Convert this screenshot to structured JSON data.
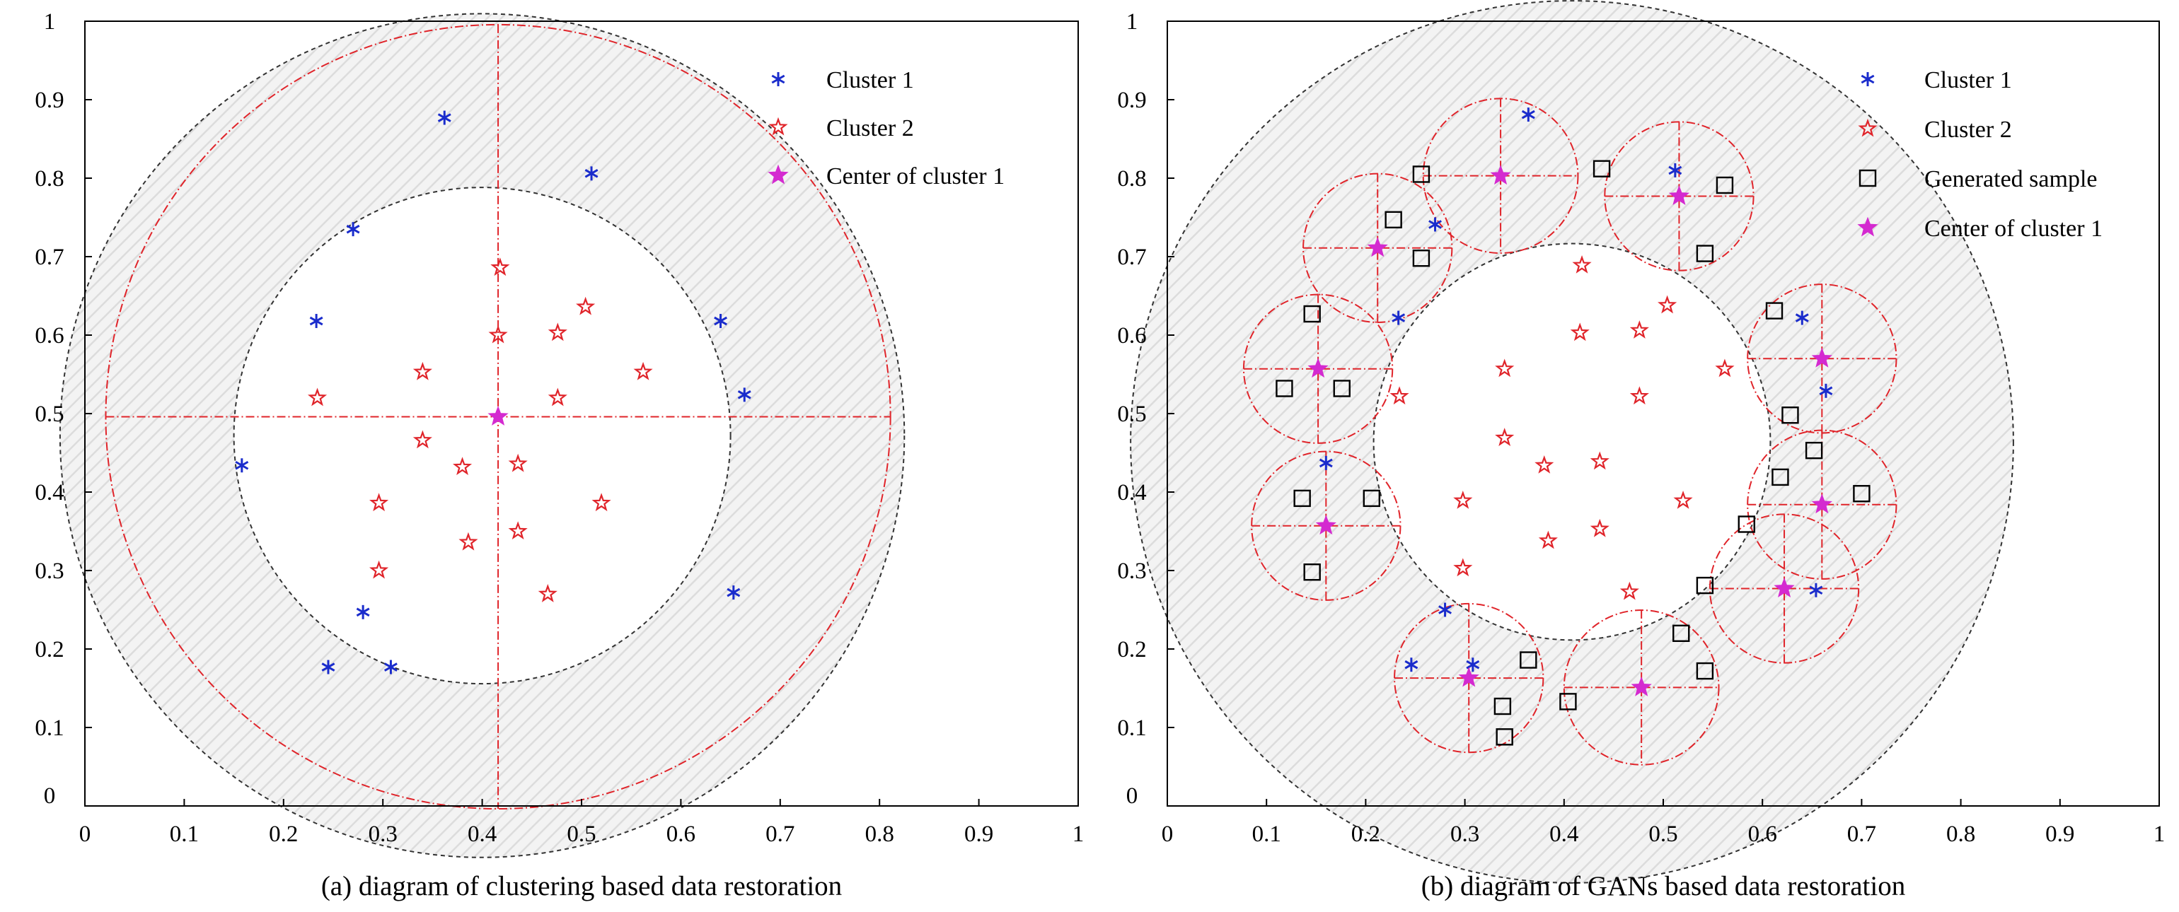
{
  "chart_data": [
    {
      "type": "scatter",
      "caption": "(a) diagram of clustering based data restoration",
      "xlim": [
        0,
        1
      ],
      "ylim": [
        0,
        1
      ],
      "xticks": [
        "0",
        "0.1",
        "0.2",
        "0.3",
        "0.4",
        "0.5",
        "0.6",
        "0.7",
        "0.8",
        "0.9",
        "1"
      ],
      "yticks": [
        "0",
        "0.1",
        "0.2",
        "0.3",
        "0.4",
        "0.5",
        "0.6",
        "0.7",
        "0.8",
        "0.9",
        "1"
      ],
      "legend": [
        "Cluster 1",
        "Cluster 2",
        "Center of cluster 1"
      ],
      "legend_position": "top-right",
      "series": [
        {
          "name": "Cluster 1",
          "marker": "asterisk",
          "color": "#1a2ccc",
          "points": [
            [
              0.362,
              0.877
            ],
            [
              0.51,
              0.806
            ],
            [
              0.27,
              0.735
            ],
            [
              0.233,
              0.618
            ],
            [
              0.64,
              0.618
            ],
            [
              0.664,
              0.524
            ],
            [
              0.158,
              0.434
            ],
            [
              0.28,
              0.247
            ],
            [
              0.653,
              0.272
            ],
            [
              0.245,
              0.177
            ],
            [
              0.308,
              0.177
            ]
          ]
        },
        {
          "name": "Cluster 2",
          "marker": "star-open",
          "color": "#e0242a",
          "points": [
            [
              0.418,
              0.686
            ],
            [
              0.504,
              0.636
            ],
            [
              0.416,
              0.6
            ],
            [
              0.476,
              0.603
            ],
            [
              0.34,
              0.553
            ],
            [
              0.562,
              0.553
            ],
            [
              0.234,
              0.52
            ],
            [
              0.476,
              0.52
            ],
            [
              0.34,
              0.466
            ],
            [
              0.436,
              0.436
            ],
            [
              0.38,
              0.432
            ],
            [
              0.296,
              0.386
            ],
            [
              0.52,
              0.386
            ],
            [
              0.436,
              0.35
            ],
            [
              0.386,
              0.336
            ],
            [
              0.296,
              0.3
            ],
            [
              0.466,
              0.27
            ]
          ]
        },
        {
          "name": "Center of cluster 1",
          "marker": "star-filled",
          "color": "#d42ad0",
          "points": [
            [
              0.416,
              0.496
            ]
          ]
        }
      ],
      "annulus": {
        "center": [
          0.4,
          0.472
        ],
        "inner_radius": 0.25,
        "outer_radius": 0.425
      },
      "dashed_circle": {
        "center": [
          0.416,
          0.496
        ],
        "radius": 0.395
      }
    },
    {
      "type": "scatter",
      "caption": "(b) diagram of GANs based data restoration",
      "xlim": [
        0,
        1
      ],
      "ylim": [
        0,
        1
      ],
      "xticks": [
        "0",
        "0.1",
        "0.2",
        "0.3",
        "0.4",
        "0.5",
        "0.6",
        "0.7",
        "0.8",
        "0.9",
        "1"
      ],
      "yticks": [
        "0",
        "0.1",
        "0.2",
        "0.3",
        "0.4",
        "0.5",
        "0.6",
        "0.7",
        "0.8",
        "0.9",
        "1"
      ],
      "legend": [
        "Cluster 1",
        "Cluster 2",
        "Generated sample",
        "Center of cluster 1"
      ],
      "legend_position": "top-right",
      "series": [
        {
          "name": "Cluster 1",
          "marker": "asterisk",
          "color": "#1a2ccc",
          "points": [
            [
              0.364,
              0.881
            ],
            [
              0.512,
              0.81
            ],
            [
              0.27,
              0.741
            ],
            [
              0.233,
              0.622
            ],
            [
              0.64,
              0.622
            ],
            [
              0.664,
              0.529
            ],
            [
              0.16,
              0.437
            ],
            [
              0.28,
              0.25
            ],
            [
              0.654,
              0.275
            ],
            [
              0.246,
              0.18
            ],
            [
              0.308,
              0.18
            ]
          ]
        },
        {
          "name": "Cluster 2",
          "marker": "star-open",
          "color": "#e0242a",
          "points": [
            [
              0.418,
              0.689
            ],
            [
              0.504,
              0.638
            ],
            [
              0.416,
              0.603
            ],
            [
              0.476,
              0.606
            ],
            [
              0.34,
              0.557
            ],
            [
              0.562,
              0.557
            ],
            [
              0.234,
              0.522
            ],
            [
              0.476,
              0.522
            ],
            [
              0.34,
              0.469
            ],
            [
              0.436,
              0.439
            ],
            [
              0.38,
              0.434
            ],
            [
              0.298,
              0.389
            ],
            [
              0.52,
              0.389
            ],
            [
              0.436,
              0.353
            ],
            [
              0.384,
              0.338
            ],
            [
              0.298,
              0.303
            ],
            [
              0.466,
              0.273
            ]
          ]
        },
        {
          "name": "Generated sample",
          "marker": "square-open",
          "color": "#000000",
          "points": [
            [
              0.256,
              0.805
            ],
            [
              0.438,
              0.812
            ],
            [
              0.562,
              0.791
            ],
            [
              0.228,
              0.747
            ],
            [
              0.256,
              0.698
            ],
            [
              0.542,
              0.704
            ],
            [
              0.146,
              0.627
            ],
            [
              0.612,
              0.631
            ],
            [
              0.118,
              0.532
            ],
            [
              0.176,
              0.532
            ],
            [
              0.628,
              0.498
            ],
            [
              0.652,
              0.453
            ],
            [
              0.618,
              0.419
            ],
            [
              0.7,
              0.398
            ],
            [
              0.136,
              0.392
            ],
            [
              0.206,
              0.392
            ],
            [
              0.584,
              0.359
            ],
            [
              0.146,
              0.298
            ],
            [
              0.542,
              0.281
            ],
            [
              0.518,
              0.22
            ],
            [
              0.364,
              0.186
            ],
            [
              0.542,
              0.172
            ],
            [
              0.404,
              0.133
            ],
            [
              0.338,
              0.127
            ],
            [
              0.34,
              0.088
            ]
          ]
        },
        {
          "name": "Center of cluster 1",
          "marker": "star-filled",
          "color": "#d42ad0",
          "points": [
            [
              0.336,
              0.803
            ],
            [
              0.516,
              0.777
            ],
            [
              0.212,
              0.711
            ],
            [
              0.152,
              0.557
            ],
            [
              0.66,
              0.57
            ],
            [
              0.66,
              0.384
            ],
            [
              0.16,
              0.357
            ],
            [
              0.622,
              0.277
            ],
            [
              0.304,
              0.163
            ],
            [
              0.478,
              0.151
            ]
          ]
        }
      ],
      "annulus": {
        "center": [
          0.408,
          0.464
        ],
        "inner_radius": 0.2,
        "outer_radius": 0.445
      },
      "local_circles": [
        {
          "center": [
            0.336,
            0.803
          ],
          "radius": 0.078
        },
        {
          "center": [
            0.516,
            0.777
          ],
          "radius": 0.075
        },
        {
          "center": [
            0.212,
            0.711
          ],
          "radius": 0.075
        },
        {
          "center": [
            0.152,
            0.557
          ],
          "radius": 0.075
        },
        {
          "center": [
            0.66,
            0.57
          ],
          "radius": 0.075
        },
        {
          "center": [
            0.66,
            0.384
          ],
          "radius": 0.075
        },
        {
          "center": [
            0.16,
            0.357
          ],
          "radius": 0.075
        },
        {
          "center": [
            0.622,
            0.277
          ],
          "radius": 0.075
        },
        {
          "center": [
            0.304,
            0.163
          ],
          "radius": 0.075
        },
        {
          "center": [
            0.478,
            0.151
          ],
          "radius": 0.078
        }
      ]
    }
  ]
}
